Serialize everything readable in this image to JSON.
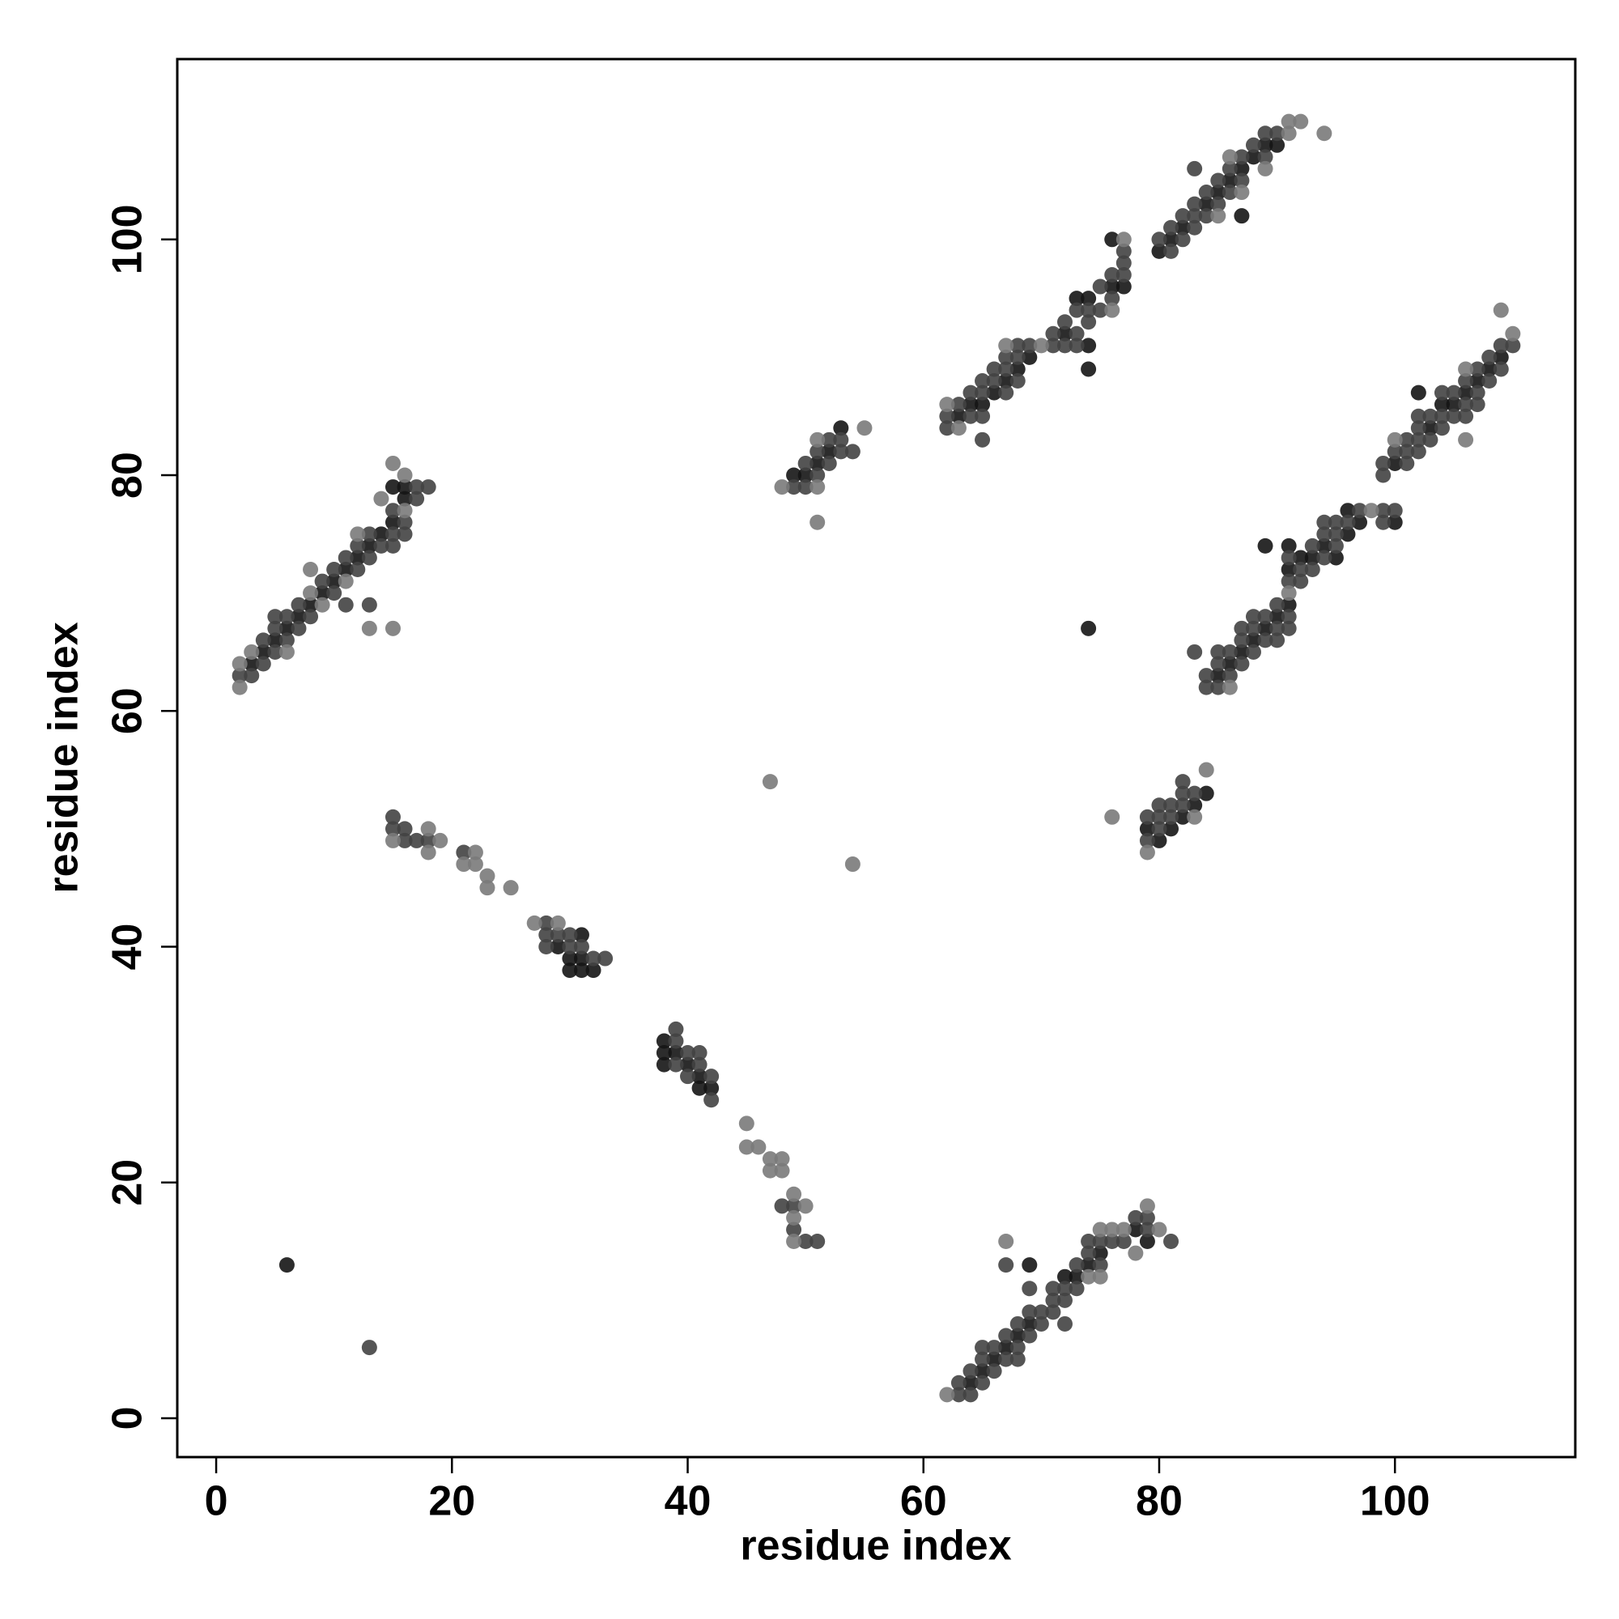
{
  "chart_data": {
    "type": "scatter",
    "xlabel": "residue index",
    "ylabel": "residue index",
    "xlim": [
      -3.3,
      115.3
    ],
    "ylim": [
      -3.3,
      115.3
    ],
    "xticks": [
      0,
      20,
      40,
      60,
      80,
      100
    ],
    "yticks": [
      0,
      20,
      40,
      60,
      80,
      100
    ],
    "series": [
      {
        "color": "#151515",
        "x": [
          3,
          4,
          5,
          6,
          7,
          8,
          9,
          10,
          11,
          12,
          13,
          14,
          15,
          15,
          16,
          16,
          29,
          30,
          30,
          31,
          31,
          31,
          32,
          38,
          38,
          38,
          39,
          40,
          41,
          41,
          42,
          50,
          51,
          52,
          53,
          49,
          64,
          65,
          66,
          67,
          68,
          69,
          69,
          72,
          73,
          74,
          75,
          78,
          79,
          63,
          64,
          65,
          66,
          67,
          68,
          69,
          72,
          73,
          74,
          74,
          74,
          76,
          76,
          77,
          80,
          81,
          82,
          84,
          85,
          86,
          87,
          87,
          88,
          89,
          90,
          79,
          80,
          81,
          82,
          83,
          84,
          85,
          86,
          87,
          88,
          89,
          89,
          90,
          91,
          91,
          91,
          92,
          93,
          94,
          95,
          96,
          96,
          97,
          100,
          100,
          102,
          103,
          104,
          105,
          106,
          107,
          108,
          109,
          6,
          74
        ],
        "y": [
          64,
          65,
          66,
          67,
          68,
          69,
          70,
          71,
          72,
          73,
          74,
          75,
          76,
          79,
          78,
          79,
          40,
          39,
          38,
          38,
          39,
          41,
          38,
          30,
          31,
          32,
          31,
          30,
          29,
          28,
          28,
          80,
          81,
          82,
          84,
          80,
          3,
          4,
          5,
          6,
          7,
          8,
          13,
          12,
          12,
          13,
          14,
          16,
          15,
          85,
          86,
          86,
          87,
          88,
          89,
          90,
          92,
          95,
          89,
          91,
          95,
          96,
          100,
          96,
          99,
          100,
          101,
          103,
          104,
          105,
          102,
          106,
          107,
          108,
          108,
          50,
          49,
          50,
          51,
          52,
          53,
          63,
          64,
          65,
          66,
          67,
          74,
          68,
          69,
          72,
          74,
          73,
          73,
          74,
          73,
          75,
          77,
          76,
          76,
          81,
          87,
          84,
          86,
          86,
          87,
          88,
          89,
          90,
          13,
          67
        ]
      },
      {
        "color": "#424242",
        "x": [
          2,
          3,
          4,
          4,
          5,
          5,
          5,
          6,
          6,
          7,
          7,
          8,
          9,
          10,
          10,
          11,
          11,
          12,
          12,
          13,
          13,
          13,
          14,
          15,
          15,
          15,
          16,
          16,
          17,
          17,
          18,
          15,
          15,
          16,
          16,
          17,
          18,
          21,
          28,
          28,
          28,
          29,
          30,
          30,
          31,
          32,
          33,
          39,
          39,
          39,
          40,
          40,
          41,
          41,
          42,
          42,
          48,
          49,
          49,
          50,
          51,
          49,
          50,
          50,
          51,
          51,
          52,
          52,
          53,
          53,
          54,
          63,
          63,
          64,
          64,
          65,
          65,
          65,
          66,
          66,
          67,
          67,
          67,
          68,
          68,
          68,
          69,
          69,
          69,
          70,
          70,
          71,
          71,
          71,
          72,
          72,
          72,
          73,
          73,
          74,
          74,
          75,
          75,
          76,
          77,
          78,
          79,
          79,
          81,
          62,
          62,
          63,
          64,
          64,
          65,
          65,
          65,
          65,
          66,
          66,
          67,
          67,
          67,
          68,
          68,
          68,
          69,
          71,
          71,
          72,
          72,
          73,
          73,
          73,
          74,
          74,
          75,
          75,
          76,
          76,
          77,
          77,
          77,
          80,
          81,
          81,
          82,
          82,
          83,
          83,
          83,
          83,
          84,
          84,
          85,
          85,
          86,
          86,
          87,
          87,
          88,
          89,
          89,
          90,
          79,
          79,
          80,
          80,
          80,
          81,
          81,
          82,
          82,
          82,
          83,
          83,
          84,
          84,
          85,
          85,
          85,
          86,
          86,
          87,
          87,
          87,
          88,
          88,
          88,
          89,
          89,
          90,
          90,
          90,
          91,
          91,
          91,
          91,
          92,
          92,
          93,
          93,
          94,
          94,
          94,
          95,
          95,
          95,
          96,
          97,
          99,
          99,
          99,
          99,
          100,
          100,
          101,
          101,
          101,
          102,
          102,
          102,
          102,
          103,
          103,
          104,
          104,
          104,
          105,
          105,
          106,
          106,
          106,
          107,
          107,
          107,
          108,
          108,
          109,
          109,
          110,
          13
        ],
        "y": [
          63,
          63,
          64,
          66,
          65,
          67,
          68,
          66,
          68,
          67,
          69,
          68,
          71,
          70,
          72,
          69,
          73,
          72,
          74,
          69,
          73,
          75,
          74,
          74,
          75,
          77,
          75,
          76,
          78,
          79,
          79,
          50,
          51,
          49,
          50,
          49,
          49,
          48,
          40,
          41,
          42,
          41,
          40,
          41,
          40,
          39,
          39,
          30,
          32,
          33,
          29,
          31,
          30,
          31,
          27,
          29,
          18,
          16,
          18,
          15,
          15,
          79,
          79,
          81,
          80,
          82,
          81,
          83,
          82,
          83,
          82,
          2,
          3,
          2,
          4,
          3,
          5,
          6,
          4,
          6,
          5,
          7,
          13,
          5,
          6,
          8,
          7,
          9,
          11,
          8,
          9,
          9,
          10,
          11,
          10,
          11,
          8,
          11,
          13,
          14,
          15,
          13,
          15,
          15,
          15,
          17,
          16,
          17,
          15,
          84,
          85,
          86,
          85,
          87,
          83,
          85,
          87,
          88,
          88,
          89,
          87,
          89,
          90,
          88,
          90,
          91,
          91,
          91,
          92,
          91,
          93,
          91,
          92,
          94,
          93,
          94,
          94,
          96,
          95,
          97,
          97,
          98,
          99,
          100,
          99,
          101,
          100,
          102,
          101,
          102,
          103,
          106,
          102,
          104,
          103,
          105,
          104,
          106,
          105,
          107,
          108,
          107,
          109,
          109,
          49,
          51,
          50,
          51,
          52,
          51,
          52,
          52,
          53,
          54,
          53,
          65,
          62,
          63,
          62,
          64,
          65,
          63,
          65,
          64,
          66,
          67,
          65,
          67,
          68,
          66,
          68,
          66,
          67,
          69,
          67,
          68,
          71,
          73,
          71,
          72,
          72,
          74,
          73,
          75,
          76,
          74,
          75,
          76,
          76,
          77,
          76,
          77,
          80,
          81,
          77,
          82,
          81,
          82,
          83,
          82,
          83,
          84,
          85,
          83,
          85,
          84,
          85,
          87,
          85,
          87,
          85,
          86,
          88,
          86,
          87,
          89,
          88,
          90,
          89,
          91,
          91,
          6
        ]
      },
      {
        "color": "#7a7a7a",
        "x": [
          2,
          2,
          3,
          6,
          8,
          8,
          9,
          11,
          12,
          13,
          14,
          15,
          15,
          16,
          16,
          15,
          18,
          18,
          19,
          21,
          22,
          22,
          23,
          23,
          25,
          27,
          29,
          45,
          45,
          46,
          47,
          47,
          48,
          48,
          49,
          49,
          49,
          50,
          48,
          51,
          51,
          51,
          55,
          62,
          67,
          74,
          75,
          75,
          76,
          77,
          78,
          79,
          80,
          62,
          63,
          67,
          70,
          76,
          77,
          85,
          86,
          87,
          89,
          91,
          91,
          92,
          94,
          76,
          79,
          83,
          84,
          86,
          91,
          98,
          100,
          106,
          106,
          109,
          110,
          47,
          54
        ],
        "y": [
          62,
          64,
          65,
          65,
          70,
          72,
          69,
          71,
          75,
          67,
          78,
          67,
          81,
          77,
          80,
          49,
          48,
          50,
          49,
          47,
          47,
          48,
          45,
          46,
          45,
          42,
          42,
          23,
          25,
          23,
          21,
          22,
          21,
          22,
          15,
          17,
          19,
          18,
          79,
          76,
          79,
          83,
          84,
          2,
          15,
          12,
          12,
          16,
          16,
          16,
          14,
          18,
          16,
          86,
          84,
          91,
          91,
          94,
          100,
          102,
          107,
          104,
          106,
          109,
          110,
          110,
          109,
          51,
          48,
          51,
          55,
          62,
          70,
          77,
          83,
          83,
          89,
          94,
          92,
          54,
          47
        ]
      }
    ]
  }
}
